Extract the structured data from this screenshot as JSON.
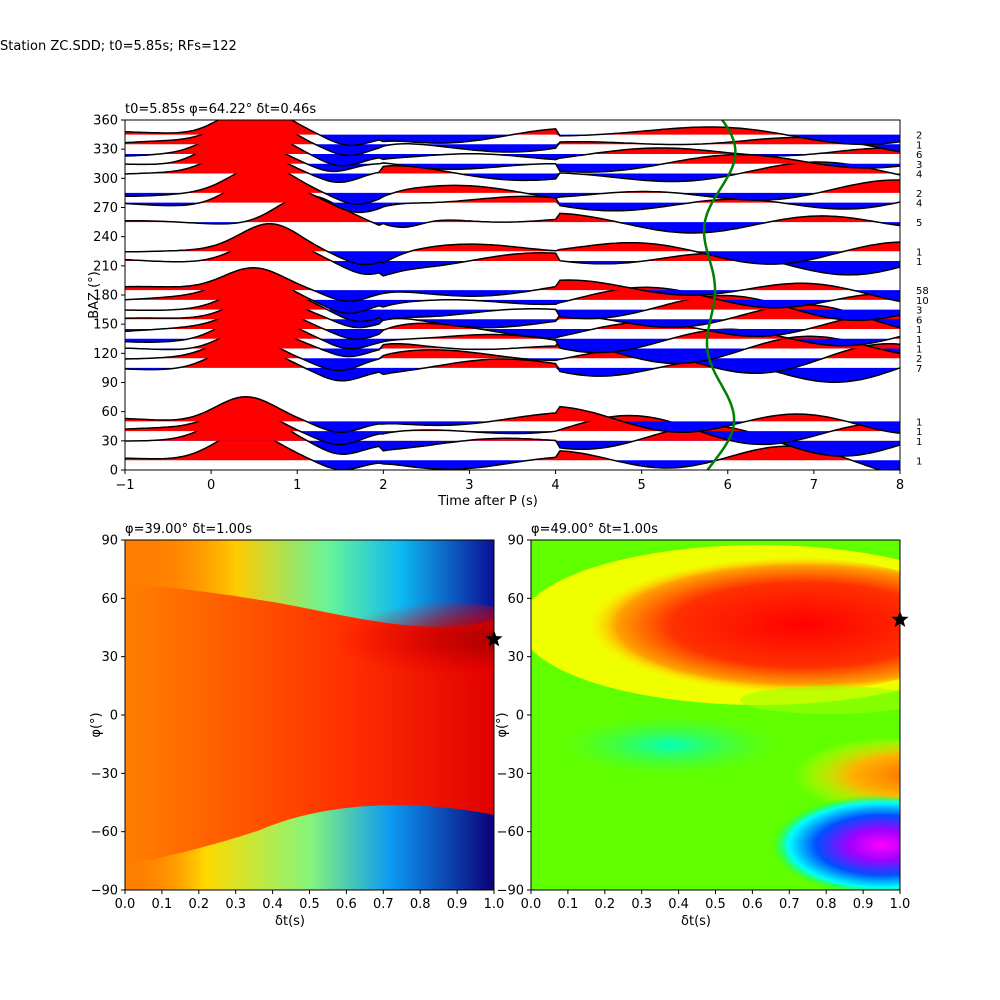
{
  "suptitle": "Station ZC.SDD; t0=5.85s; RFs=122",
  "chart_data": [
    {
      "type": "line",
      "panel": "top",
      "title": "t0=5.85s φ=64.22° δt=0.46s",
      "xlabel": "Time after P (s)",
      "ylabel": "BAZ (°)",
      "xlim": [
        -1,
        8
      ],
      "ylim": [
        0,
        360
      ],
      "xticks": [
        -1,
        0,
        1,
        2,
        3,
        4,
        5,
        6,
        7,
        8
      ],
      "yticks": [
        0,
        30,
        60,
        90,
        120,
        150,
        180,
        210,
        240,
        270,
        300,
        330,
        360
      ],
      "positive_fill": "#ff0000",
      "negative_fill": "#0000ff",
      "trace_color": "#000000",
      "curve_color": "#008000",
      "traces": [
        {
          "baz": 10,
          "count": "1",
          "peak_time": 0.4,
          "peak_amp": 0.9
        },
        {
          "baz": 30,
          "count": "1",
          "peak_time": 0.4,
          "peak_amp": 0.9
        },
        {
          "baz": 40,
          "count": "1",
          "peak_time": 0.4,
          "peak_amp": 0.75
        },
        {
          "baz": 50,
          "count": "1",
          "peak_time": 0.4,
          "peak_amp": 0.85
        },
        {
          "baz": 105,
          "count": "7",
          "peak_time": 0.4,
          "peak_amp": 0.75
        },
        {
          "baz": 115,
          "count": "2",
          "peak_time": 0.4,
          "peak_amp": 0.75
        },
        {
          "baz": 125,
          "count": "1",
          "peak_time": 0.5,
          "peak_amp": 0.8
        },
        {
          "baz": 135,
          "count": "1",
          "peak_time": 0.5,
          "peak_amp": 0.75
        },
        {
          "baz": 145,
          "count": "1",
          "peak_time": 0.6,
          "peak_amp": 0.75
        },
        {
          "baz": 155,
          "count": "6",
          "peak_time": 0.6,
          "peak_amp": 0.75
        },
        {
          "baz": 165,
          "count": "3",
          "peak_time": 0.6,
          "peak_amp": 0.75
        },
        {
          "baz": 175,
          "count": "10",
          "peak_time": 0.5,
          "peak_amp": 0.75
        },
        {
          "baz": 185,
          "count": "58",
          "peak_time": 0.5,
          "peak_amp": 0.75
        },
        {
          "baz": 215,
          "count": "1",
          "peak_time": 0.7,
          "peak_amp": 0.8
        },
        {
          "baz": 225,
          "count": "1",
          "peak_time": 0.7,
          "peak_amp": 0.9
        },
        {
          "baz": 255,
          "count": "5",
          "peak_time": 1.1,
          "peak_amp": 0.9
        },
        {
          "baz": 275,
          "count": "4",
          "peak_time": 0.6,
          "peak_amp": 0.9
        },
        {
          "baz": 285,
          "count": "2",
          "peak_time": 0.6,
          "peak_amp": 0.85
        },
        {
          "baz": 305,
          "count": "4",
          "peak_time": 0.4,
          "peak_amp": 0.9
        },
        {
          "baz": 315,
          "count": "3",
          "peak_time": 0.3,
          "peak_amp": 0.9
        },
        {
          "baz": 325,
          "count": "6",
          "peak_time": 0.4,
          "peak_amp": 0.85
        },
        {
          "baz": 335,
          "count": "1",
          "peak_time": 0.5,
          "peak_amp": 0.95
        },
        {
          "baz": 345,
          "count": "2",
          "peak_time": 0.5,
          "peak_amp": 0.95
        }
      ]
    },
    {
      "type": "heatmap",
      "panel": "bottom-left",
      "title": "φ=39.00° δt=1.00s",
      "xlabel": "δt(s)",
      "ylabel": "φ(°)",
      "xlim": [
        0,
        1
      ],
      "ylim": [
        -90,
        90
      ],
      "xticks": [
        "0.0",
        "0.1",
        "0.2",
        "0.3",
        "0.4",
        "0.5",
        "0.6",
        "0.7",
        "0.8",
        "0.9",
        "1.0"
      ],
      "yticks": [
        -90,
        -60,
        -30,
        0,
        30,
        60,
        90
      ],
      "colormap": "jet",
      "best": {
        "dt": 1.0,
        "phi": 39.0
      }
    },
    {
      "type": "heatmap",
      "panel": "bottom-right",
      "title": "φ=49.00° δt=1.00s",
      "xlabel": "δt(s)",
      "ylabel": "φ(°)",
      "xlim": [
        0,
        1
      ],
      "ylim": [
        -90,
        90
      ],
      "xticks": [
        "0.0",
        "0.1",
        "0.2",
        "0.3",
        "0.4",
        "0.5",
        "0.6",
        "0.7",
        "0.8",
        "0.9",
        "1.0"
      ],
      "yticks": [
        -90,
        -60,
        -30,
        0,
        30,
        60,
        90
      ],
      "colormap": "hsv",
      "best": {
        "dt": 1.0,
        "phi": 49.0
      }
    }
  ]
}
